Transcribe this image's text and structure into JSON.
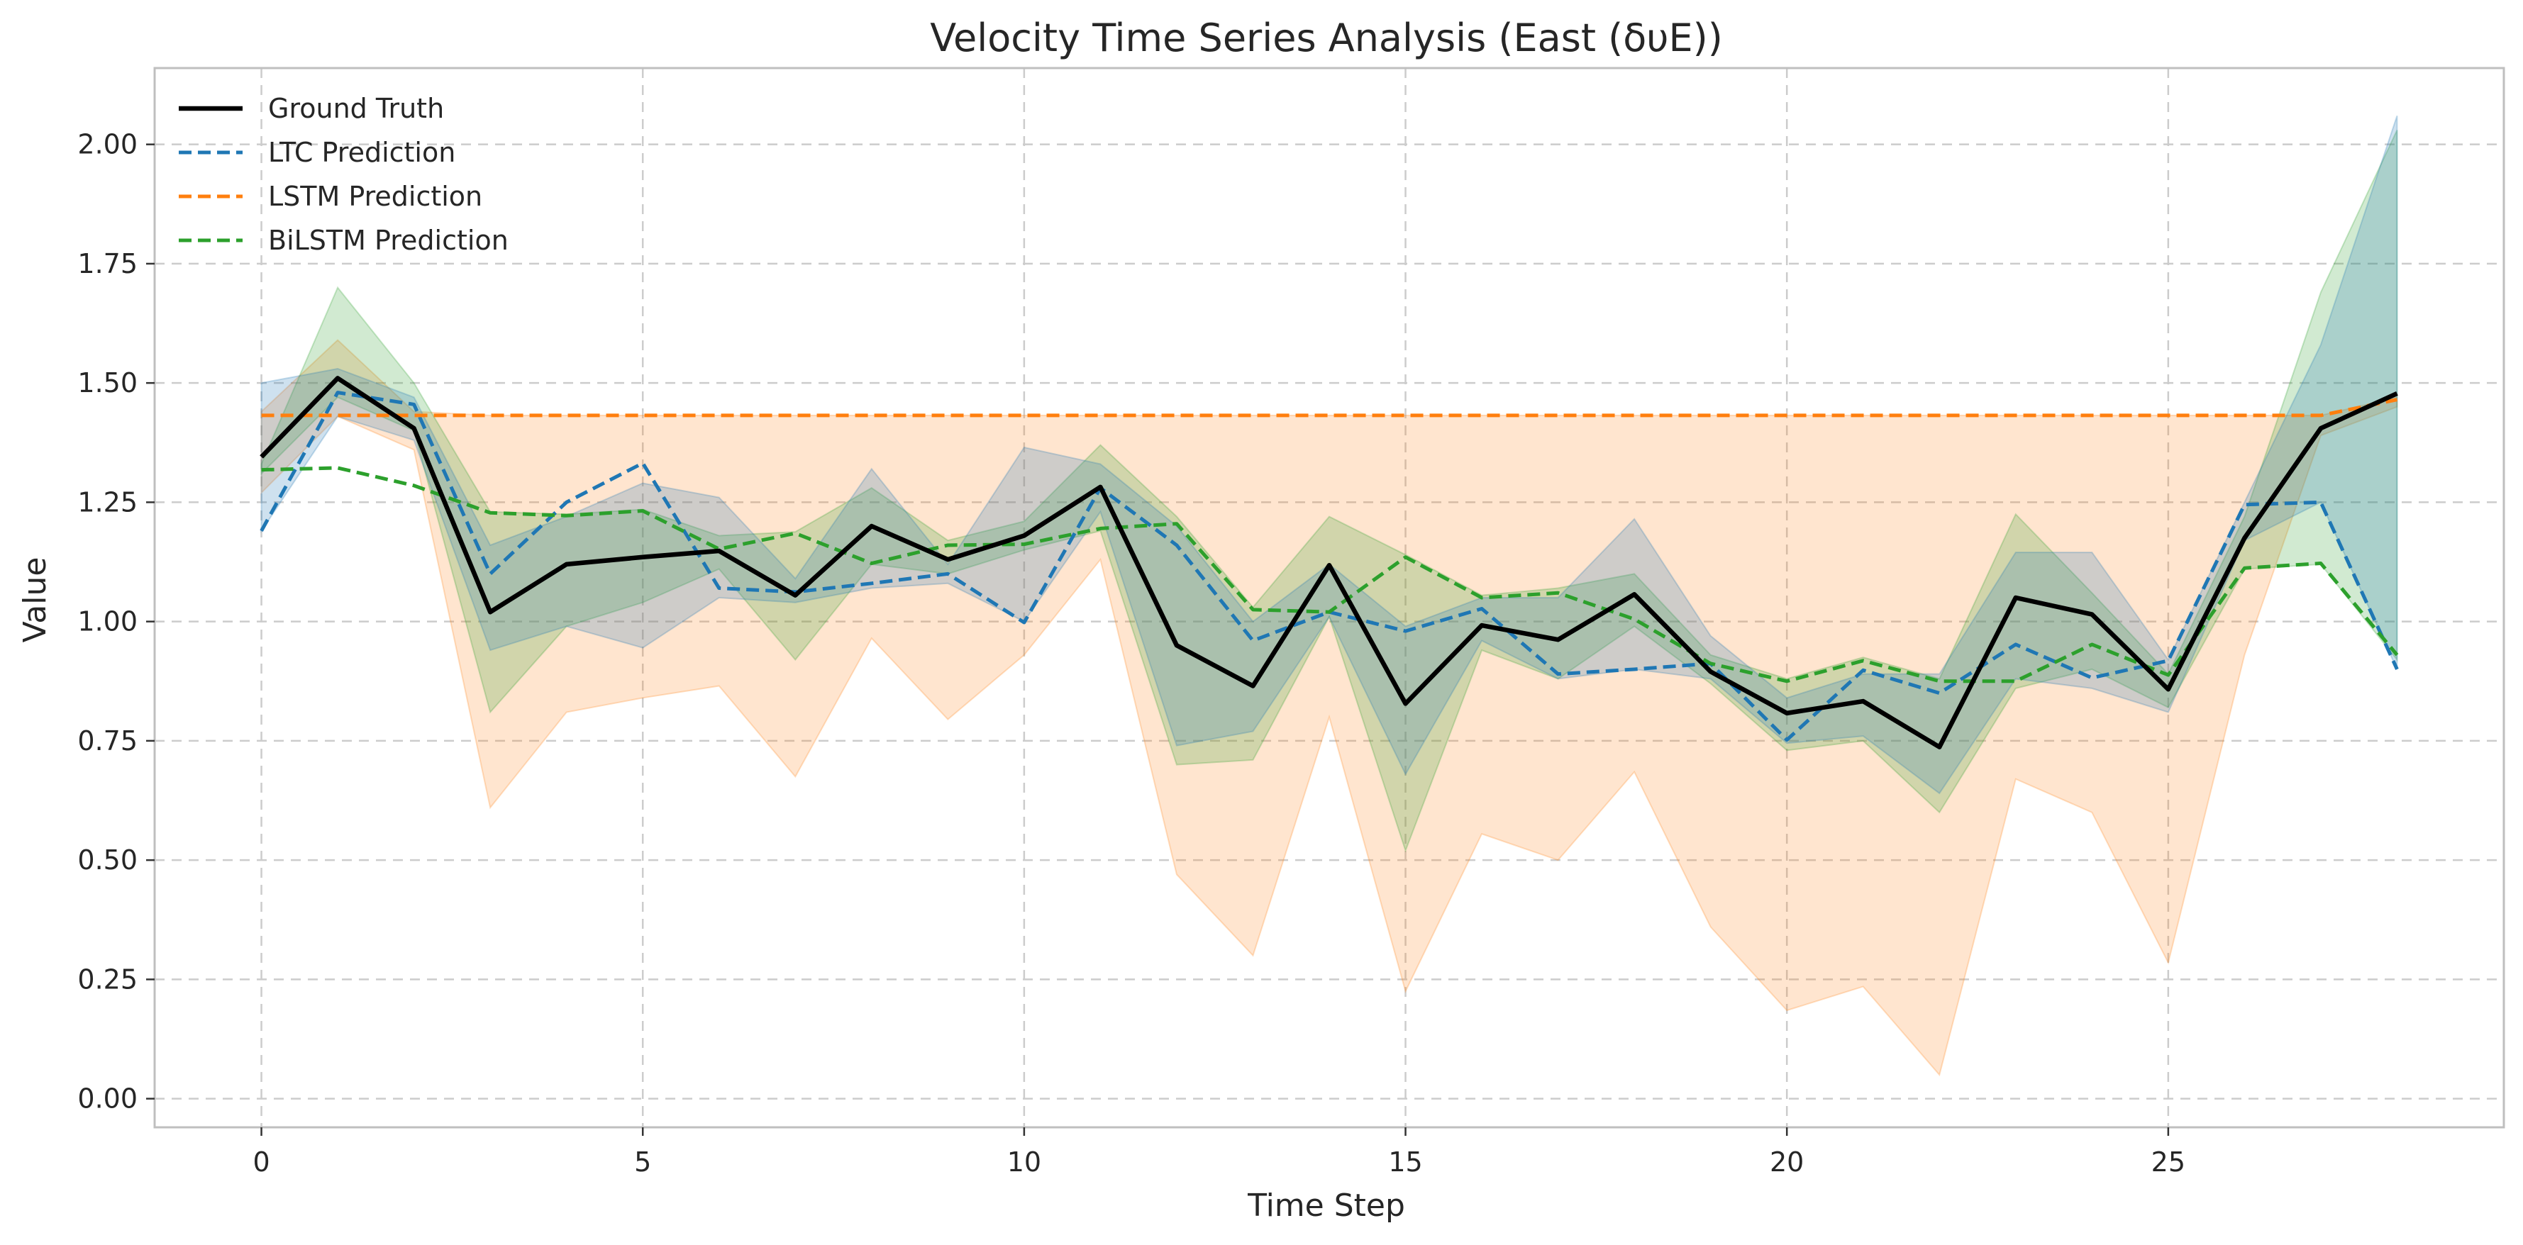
{
  "chart_data": {
    "type": "line",
    "title": "Velocity Time Series Analysis (East (δυE))",
    "xlabel": "Time Step",
    "ylabel": "Value",
    "xlim": [
      -1.4,
      29.4
    ],
    "ylim": [
      -0.06,
      2.16
    ],
    "x_ticks": [
      0,
      5,
      10,
      15,
      20,
      25
    ],
    "y_ticks": [
      0.0,
      0.25,
      0.5,
      0.75,
      1.0,
      1.25,
      1.5,
      1.75,
      2.0
    ],
    "y_tick_labels": [
      "0.00",
      "0.25",
      "0.50",
      "0.75",
      "1.00",
      "1.25",
      "1.50",
      "1.75",
      "2.00"
    ],
    "grid": true,
    "legend_position": "top-left",
    "x": [
      0,
      1,
      2,
      3,
      4,
      5,
      6,
      7,
      8,
      9,
      10,
      11,
      12,
      13,
      14,
      15,
      16,
      17,
      18,
      19,
      20,
      21,
      22,
      23,
      24,
      25,
      26,
      27,
      28
    ],
    "ground_truth": {
      "name": "Ground Truth",
      "color": "#000000",
      "values": [
        1.345,
        1.51,
        1.405,
        1.02,
        1.12,
        1.135,
        1.148,
        1.055,
        1.2,
        1.13,
        1.18,
        1.282,
        0.95,
        0.865,
        1.118,
        0.828,
        0.992,
        0.962,
        1.057,
        0.895,
        0.808,
        0.833,
        0.737,
        1.05,
        1.015,
        0.858,
        1.175,
        1.405,
        1.478
      ]
    },
    "series": [
      {
        "name": "LTC Prediction",
        "color": "#1f77b4",
        "values": [
          1.19,
          1.48,
          1.455,
          1.1,
          1.25,
          1.332,
          1.07,
          1.062,
          1.08,
          1.1,
          0.998,
          1.28,
          1.16,
          0.96,
          1.02,
          0.98,
          1.027,
          0.89,
          0.9,
          0.912,
          0.752,
          0.898,
          0.85,
          0.952,
          0.882,
          0.918,
          1.245,
          1.25,
          0.9
        ],
        "band_upper": [
          1.5,
          1.53,
          1.47,
          1.16,
          1.22,
          1.29,
          1.26,
          1.09,
          1.32,
          1.12,
          1.365,
          1.33,
          1.2,
          1.0,
          1.12,
          0.99,
          1.05,
          1.05,
          1.215,
          0.97,
          0.84,
          0.89,
          0.89,
          1.145,
          1.145,
          0.92,
          1.25,
          1.58,
          2.06
        ],
        "band_lower": [
          1.19,
          1.43,
          1.38,
          0.94,
          0.99,
          0.945,
          1.05,
          1.04,
          1.07,
          1.08,
          1.0,
          1.23,
          0.74,
          0.77,
          1.01,
          0.68,
          0.96,
          0.88,
          0.9,
          0.88,
          0.745,
          0.76,
          0.64,
          0.88,
          0.86,
          0.81,
          1.17,
          1.25,
          0.9
        ]
      },
      {
        "name": "LSTM Prediction",
        "color": "#ff7f0e",
        "values": [
          1.432,
          1.432,
          1.432,
          1.432,
          1.432,
          1.432,
          1.432,
          1.432,
          1.432,
          1.432,
          1.432,
          1.432,
          1.432,
          1.432,
          1.432,
          1.432,
          1.432,
          1.432,
          1.432,
          1.432,
          1.432,
          1.432,
          1.432,
          1.432,
          1.432,
          1.432,
          1.432,
          1.432,
          1.465
        ],
        "band_upper": [
          1.44,
          1.59,
          1.44,
          1.432,
          1.432,
          1.432,
          1.432,
          1.432,
          1.432,
          1.432,
          1.432,
          1.432,
          1.432,
          1.432,
          1.432,
          1.432,
          1.432,
          1.432,
          1.432,
          1.432,
          1.432,
          1.432,
          1.432,
          1.432,
          1.432,
          1.432,
          1.432,
          1.432,
          1.47
        ],
        "band_lower": [
          1.27,
          1.43,
          1.36,
          0.61,
          0.81,
          0.84,
          0.865,
          0.675,
          0.965,
          0.795,
          0.93,
          1.13,
          0.47,
          0.3,
          0.8,
          0.225,
          0.555,
          0.5,
          0.685,
          0.36,
          0.185,
          0.235,
          0.05,
          0.67,
          0.6,
          0.285,
          0.93,
          1.39,
          1.45
        ]
      },
      {
        "name": "BiLSTM Prediction",
        "color": "#2ca02c",
        "values": [
          1.318,
          1.322,
          1.285,
          1.228,
          1.222,
          1.232,
          1.152,
          1.185,
          1.122,
          1.16,
          1.162,
          1.195,
          1.205,
          1.025,
          1.02,
          1.135,
          1.05,
          1.06,
          1.005,
          0.912,
          0.875,
          0.918,
          0.875,
          0.875,
          0.952,
          0.888,
          1.112,
          1.122,
          0.93
        ],
        "band_upper": [
          1.33,
          1.7,
          1.5,
          1.23,
          1.225,
          1.235,
          1.18,
          1.188,
          1.28,
          1.17,
          1.21,
          1.37,
          1.22,
          1.03,
          1.22,
          1.14,
          1.055,
          1.07,
          1.1,
          0.93,
          0.88,
          0.925,
          0.88,
          1.225,
          1.06,
          0.89,
          1.22,
          1.69,
          2.03
        ],
        "band_lower": [
          1.31,
          1.47,
          1.4,
          0.81,
          0.99,
          1.04,
          1.11,
          0.92,
          1.12,
          1.1,
          1.15,
          1.19,
          0.7,
          0.71,
          1.01,
          0.52,
          0.94,
          0.88,
          0.99,
          0.87,
          0.73,
          0.75,
          0.6,
          0.86,
          0.9,
          0.82,
          1.11,
          1.12,
          0.92
        ]
      }
    ]
  }
}
